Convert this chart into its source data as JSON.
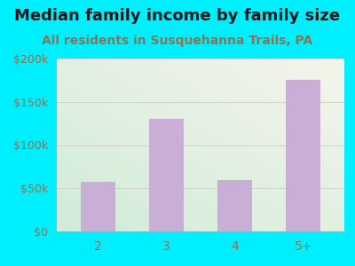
{
  "title": "Median family income by family size",
  "subtitle": "All residents in Susquehanna Trails, PA",
  "categories": [
    "2",
    "3",
    "4",
    "5+"
  ],
  "values": [
    57000,
    130000,
    60000,
    175000
  ],
  "bar_color": "#c9aed6",
  "title_fontsize": 13,
  "subtitle_fontsize": 10,
  "tick_label_color": "#8B7355",
  "title_color": "#1a1a1a",
  "subtitle_color": "#8B7355",
  "background_outer": "#00efff",
  "background_inner_topleft": "#d0ecd8",
  "background_inner_bottomright": "#f5f5ea",
  "ylim": [
    0,
    200000
  ],
  "yticks": [
    0,
    50000,
    100000,
    150000,
    200000
  ],
  "ytick_labels": [
    "$0",
    "$50k",
    "$100k",
    "$150k",
    "$200k"
  ]
}
